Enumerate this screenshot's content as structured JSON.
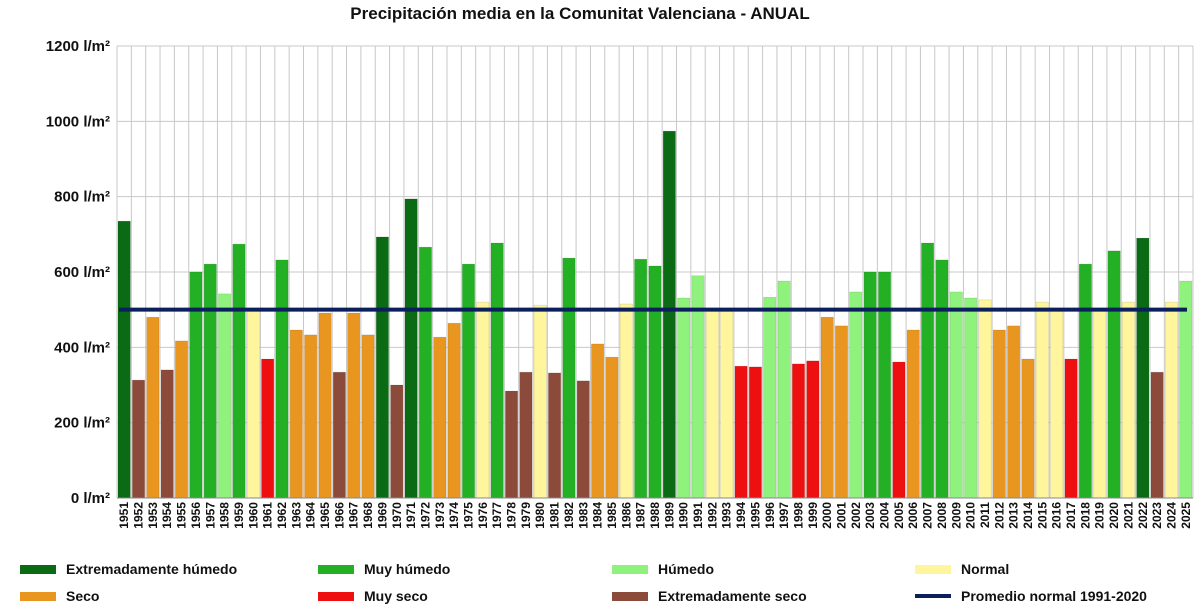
{
  "chart_data": {
    "type": "bar",
    "title": "Precipitación media en la Comunitat Valenciana - ANUAL",
    "y_unit_suffix": " l/m²",
    "ylim": [
      0,
      1200
    ],
    "yticks": [
      0,
      200,
      400,
      600,
      800,
      1000,
      1200
    ],
    "ytick_labels": [
      "0 l/m²",
      "200 l/m²",
      "400 l/m²",
      "600 l/m²",
      "800 l/m²",
      "1000 l/m²",
      "1200 l/m²"
    ],
    "grid": true,
    "categories": [
      "1951",
      "1952",
      "1953",
      "1954",
      "1955",
      "1956",
      "1957",
      "1958",
      "1959",
      "1960",
      "1961",
      "1962",
      "1963",
      "1964",
      "1965",
      "1966",
      "1967",
      "1968",
      "1969",
      "1970",
      "1971",
      "1972",
      "1973",
      "1974",
      "1975",
      "1976",
      "1977",
      "1978",
      "1979",
      "1980",
      "1981",
      "1982",
      "1983",
      "1984",
      "1985",
      "1986",
      "1987",
      "1988",
      "1989",
      "1990",
      "1991",
      "1992",
      "1993",
      "1994",
      "1995",
      "1996",
      "1997",
      "1998",
      "1999",
      "2000",
      "2001",
      "2002",
      "2003",
      "2004",
      "2005",
      "2006",
      "2007",
      "2008",
      "2009",
      "2010",
      "2011",
      "2012",
      "2013",
      "2014",
      "2015",
      "2016",
      "2017",
      "2018",
      "2019",
      "2020",
      "2021",
      "2022",
      "2023",
      "2024",
      "2025"
    ],
    "values": [
      735,
      313,
      480,
      340,
      417,
      600,
      621,
      542,
      674,
      499,
      369,
      632,
      446,
      433,
      491,
      334,
      491,
      433,
      693,
      300,
      794,
      666,
      427,
      464,
      621,
      520,
      677,
      284,
      334,
      512,
      332,
      637,
      311,
      409,
      374,
      515,
      634,
      616,
      974,
      531,
      590,
      497,
      497,
      350,
      348,
      533,
      576,
      356,
      364,
      480,
      457,
      547,
      600,
      600,
      361,
      446,
      677,
      632,
      547,
      531,
      526,
      446,
      457,
      369,
      520,
      497,
      369,
      621,
      497,
      656,
      520,
      690,
      334,
      520,
      576
    ],
    "classes": [
      "EH",
      "ES",
      "S",
      "ES",
      "S",
      "MH",
      "MH",
      "H",
      "MH",
      "N",
      "MS",
      "MH",
      "S",
      "S",
      "S",
      "ES",
      "S",
      "S",
      "EH",
      "ES",
      "EH",
      "MH",
      "S",
      "S",
      "MH",
      "N",
      "MH",
      "ES",
      "ES",
      "N",
      "ES",
      "MH",
      "ES",
      "S",
      "S",
      "N",
      "MH",
      "MH",
      "EH",
      "H",
      "H",
      "N",
      "N",
      "MS",
      "MS",
      "H",
      "H",
      "MS",
      "MS",
      "S",
      "S",
      "H",
      "MH",
      "MH",
      "MS",
      "S",
      "MH",
      "MH",
      "H",
      "H",
      "N",
      "S",
      "S",
      "S",
      "N",
      "N",
      "MS",
      "MH",
      "N",
      "MH",
      "N",
      "EH",
      "ES",
      "N",
      "H"
    ],
    "legend": [
      {
        "key": "EH",
        "label": "Extremadamente húmedo",
        "color": "#0b6a14"
      },
      {
        "key": "MH",
        "label": "Muy húmedo",
        "color": "#24b024"
      },
      {
        "key": "H",
        "label": "Húmedo",
        "color": "#8ff27c"
      },
      {
        "key": "N",
        "label": "Normal",
        "color": "#fff59c"
      },
      {
        "key": "S",
        "label": "Seco",
        "color": "#e8961f"
      },
      {
        "key": "MS",
        "label": "Muy seco",
        "color": "#ee1010"
      },
      {
        "key": "ES",
        "label": "Extremadamente seco",
        "color": "#8c4a3b"
      }
    ],
    "reference_line": {
      "label": "Promedio normal 1991-2020",
      "value": 500,
      "color": "#0b1f5c"
    },
    "legend_placement": "bottom"
  }
}
